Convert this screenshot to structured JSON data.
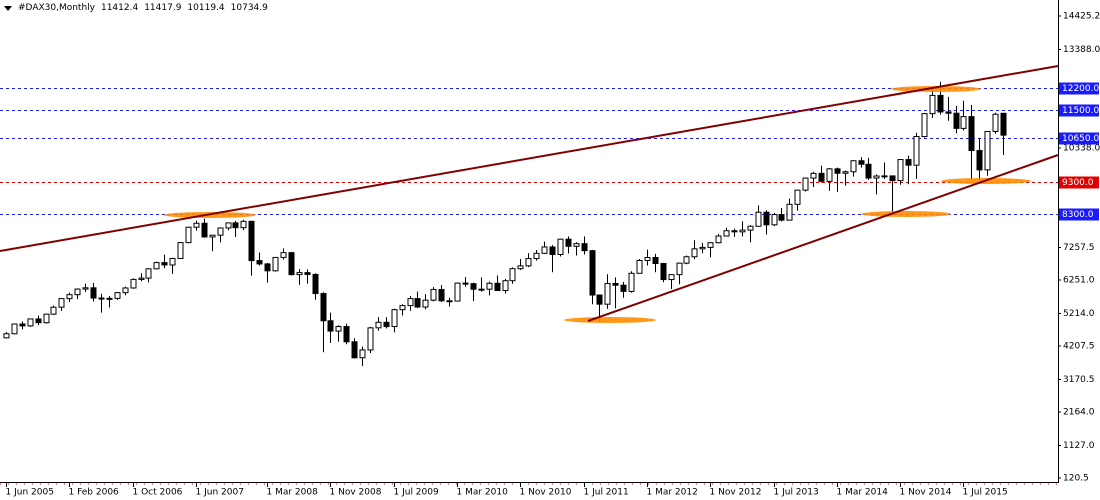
{
  "chart_data": {
    "type": "candlestick",
    "title": "#DAX30,Monthly",
    "header_values": [
      11412.4,
      11417.9,
      10119.4,
      10734.9
    ],
    "categories": [
      "1 Jun 2005",
      null,
      null,
      null,
      null,
      null,
      null,
      null,
      "1 Feb 2006",
      null,
      null,
      null,
      null,
      null,
      null,
      null,
      "1 Oct 2006",
      null,
      null,
      null,
      null,
      null,
      null,
      null,
      "1 Jun 2007",
      null,
      null,
      null,
      null,
      null,
      null,
      null,
      null,
      "1 Mar 2008",
      null,
      null,
      null,
      null,
      null,
      null,
      null,
      "1 Nov 2008",
      null,
      null,
      null,
      null,
      null,
      null,
      null,
      "1 Jul 2009",
      null,
      null,
      null,
      null,
      null,
      null,
      null,
      "1 Mar 2010",
      null,
      null,
      null,
      null,
      null,
      null,
      null,
      "1 Nov 2010",
      null,
      null,
      null,
      null,
      null,
      null,
      null,
      "1 Jul 2011",
      null,
      null,
      null,
      null,
      null,
      null,
      null,
      "1 Mar 2012",
      null,
      null,
      null,
      null,
      null,
      null,
      null,
      "1 Nov 2012",
      null,
      null,
      null,
      null,
      null,
      null,
      null,
      "1 Jul 2013",
      null,
      null,
      null,
      null,
      null,
      null,
      null,
      "1 Mar 2014",
      null,
      null,
      null,
      null,
      null,
      null,
      null,
      "1 Nov 2014",
      null,
      null,
      null,
      null,
      null,
      null,
      null,
      "1 Jul 2015",
      null,
      null,
      null,
      null,
      null
    ],
    "open": [
      4460,
      4586,
      4887,
      4830,
      5044,
      4929,
      5193,
      5408,
      5674,
      5797,
      5970,
      6009,
      5692,
      5683,
      5682,
      5859,
      6004,
      6269,
      6309,
      6597,
      6789,
      6716,
      6917,
      7409,
      7884,
      8007,
      7584,
      7638,
      7862,
      8019,
      7871,
      8067,
      6851,
      6748,
      6535,
      6949,
      7097,
      6418,
      6479,
      6422,
      5831,
      4988,
      4669,
      4810,
      4338,
      3843,
      4085,
      4769,
      4941,
      4809,
      5332,
      5458,
      5675,
      5415,
      5625,
      5957,
      5608,
      5598,
      6154,
      6136,
      5964,
      5966,
      6148,
      5925,
      6229,
      6601,
      6688,
      6914,
      7077,
      7273,
      7041,
      7514,
      7294,
      7376,
      7159,
      5785,
      5502,
      6141,
      6089,
      5898,
      6458,
      6856,
      6947,
      6761,
      6264,
      6416,
      6772,
      6970,
      7216,
      7260,
      7405,
      7612,
      7776,
      7742,
      7795,
      7914,
      8349,
      7959,
      8276,
      8104,
      8594,
      9033,
      9406,
      9552,
      9306,
      9692,
      9556,
      9603,
      9943,
      9833,
      9407,
      9470,
      9474,
      9327,
      9980,
      9806,
      10694,
      11402,
      11966,
      11454,
      11414,
      10945,
      11309,
      10259,
      9660,
      10850,
      11412.4
    ],
    "high": [
      4637,
      4900,
      4970,
      5060,
      5150,
      5210,
      5460,
      5680,
      5860,
      5990,
      6140,
      6160,
      5820,
      5760,
      5880,
      6040,
      6300,
      6460,
      6620,
      6820,
      7040,
      6940,
      7420,
      7900,
      8090,
      8151,
      7640,
      7880,
      8030,
      8080,
      8117,
      8080,
      7100,
      6780,
      6960,
      7230,
      7120,
      6590,
      6580,
      6460,
      5870,
      5240,
      4850,
      4900,
      4450,
      4190,
      4800,
      5100,
      5100,
      5360,
      5500,
      5760,
      5890,
      5810,
      6030,
      6090,
      5700,
      6170,
      6340,
      6170,
      6330,
      6200,
      6390,
      6280,
      6640,
      6900,
      7080,
      7180,
      7440,
      7330,
      7530,
      7600,
      7420,
      7600,
      7180,
      5800,
      6430,
      6330,
      6190,
      6520,
      6900,
      7190,
      7060,
      6780,
      6430,
      6790,
      7010,
      7480,
      7400,
      7420,
      7680,
      7870,
      7840,
      8070,
      7950,
      8560,
      8410,
      8330,
      8480,
      8770,
      9050,
      9420,
      9600,
      9790,
      9720,
      9730,
      9640,
      9950,
      10050,
      10030,
      9520,
      9890,
      9480,
      9990,
      10100,
      10810,
      11420,
      12220,
      12390,
      11920,
      11640,
      11800,
      11670,
      10650,
      10850,
      11430,
      11417.9
    ],
    "low": [
      4440,
      4570,
      4720,
      4800,
      4850,
      4900,
      5170,
      5290,
      5570,
      5660,
      5880,
      5580,
      5240,
      5400,
      5630,
      5780,
      5980,
      6210,
      6180,
      6580,
      6620,
      6440,
      6900,
      7390,
      7780,
      7560,
      7140,
      7420,
      7790,
      7580,
      7790,
      6384,
      6700,
      6168,
      6510,
      6880,
      6390,
      6100,
      6140,
      5640,
      4015,
      4300,
      4340,
      4260,
      3820,
      3589,
      3990,
      4680,
      4750,
      4630,
      5150,
      5300,
      5380,
      5340,
      5590,
      5570,
      5430,
      5590,
      6040,
      5600,
      5890,
      5780,
      5910,
      5830,
      6130,
      6560,
      6650,
      6850,
      7060,
      6490,
      6980,
      7070,
      7010,
      7040,
      5500,
      4966,
      5360,
      5370,
      5700,
      5860,
      6450,
      6700,
      6490,
      6180,
      5970,
      6120,
      6740,
      6900,
      7080,
      6950,
      7380,
      7600,
      7580,
      7600,
      7420,
      7900,
      7660,
      7920,
      8060,
      8090,
      8400,
      8990,
      9130,
      9270,
      9010,
      8980,
      9170,
      9450,
      9730,
      9350,
      8900,
      9380,
      8355,
      9200,
      9220,
      9380,
      10660,
      11270,
      11370,
      11180,
      10790,
      10880,
      9338,
      9325,
      9480,
      10780,
      10119.4
    ],
    "close": [
      4586,
      4887,
      4830,
      5044,
      4929,
      5193,
      5408,
      5674,
      5797,
      5970,
      6009,
      5692,
      5683,
      5682,
      5859,
      6004,
      6269,
      6309,
      6597,
      6789,
      6716,
      6917,
      7409,
      7884,
      8007,
      7584,
      7638,
      7862,
      8019,
      7871,
      8067,
      6851,
      6748,
      6535,
      6949,
      7097,
      6418,
      6479,
      6422,
      5831,
      4988,
      4669,
      4810,
      4338,
      3843,
      4085,
      4769,
      4941,
      4809,
      5332,
      5458,
      5675,
      5415,
      5625,
      5957,
      5608,
      5598,
      6154,
      6136,
      5964,
      5966,
      6148,
      5925,
      6229,
      6601,
      6688,
      6914,
      7077,
      7273,
      7041,
      7514,
      7294,
      7376,
      7159,
      5785,
      5502,
      6141,
      6089,
      5898,
      6458,
      6856,
      6947,
      6761,
      6264,
      6416,
      6772,
      6970,
      7216,
      7260,
      7405,
      7612,
      7776,
      7742,
      7795,
      7914,
      8349,
      7959,
      8276,
      8104,
      8594,
      9033,
      9406,
      9552,
      9306,
      9692,
      9556,
      9603,
      9943,
      9833,
      9407,
      9470,
      9474,
      9327,
      9980,
      9806,
      10694,
      11402,
      11966,
      11454,
      11414,
      10945,
      11309,
      10259,
      9660,
      10850,
      11382,
      10734.9
    ],
    "up_color": "#ffffff",
    "down_color": "#000000",
    "ylim": [
      -4,
      14920
    ],
    "yticks": [
      120.5,
      {
        "value": 1127,
        "label": "1127.0"
      },
      {
        "value": 2164,
        "label": "2164.0"
      },
      3170.5,
      4207.5,
      {
        "value": 5214,
        "label": "5214.0"
      },
      {
        "value": 6251,
        "label": "6251.0"
      },
      7257.5,
      {
        "value": 10338,
        "label": "10338.0"
      },
      {
        "value": 13388,
        "label": "13388.0"
      },
      14425.2
    ],
    "levels": [
      {
        "value": 12200,
        "label": "12200.0",
        "color": "#1a1aff"
      },
      {
        "value": 11500,
        "label": "11500.0",
        "color": "#1a1aff"
      },
      {
        "value": 10650,
        "label": "10650.0",
        "color": "#1a1aff"
      },
      {
        "value": 9300,
        "label": "9300.0",
        "color": "#e00000"
      },
      {
        "value": 8300,
        "label": "8300.0",
        "color": "#1a1aff"
      }
    ]
  }
}
